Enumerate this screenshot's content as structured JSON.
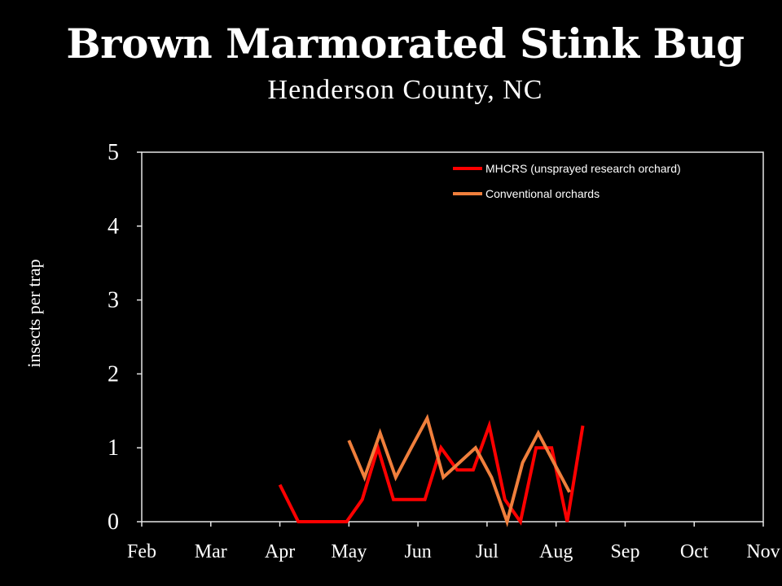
{
  "chart_data": {
    "type": "line",
    "title": "Brown Marmorated Stink Bug",
    "subtitle": "Henderson County, NC",
    "xlabel": "",
    "ylabel": "insects per trap",
    "x_ticks": [
      "Feb",
      "Mar",
      "Apr",
      "May",
      "Jun",
      "Jul",
      "Aug",
      "Sep",
      "Oct",
      "Nov"
    ],
    "xlim": [
      "Feb",
      "Nov"
    ],
    "ylim": [
      0,
      5
    ],
    "y_ticks": [
      0,
      1,
      2,
      3,
      4,
      5
    ],
    "grid": false,
    "legend_position": "top-right",
    "series": [
      {
        "name": "MHCRS (unsprayed research orchard)",
        "color": "#ff0000",
        "x": [
          "Apr 1",
          "Apr 9",
          "Apr 16",
          "Apr 23",
          "Apr 30",
          "May 7",
          "May 14",
          "May 21",
          "May 28",
          "Jun 4",
          "Jun 11",
          "Jun 18",
          "Jun 25",
          "Jul 2",
          "Jul 9",
          "Jul 16",
          "Jul 23",
          "Jul 30",
          "Aug 6",
          "Aug 13"
        ],
        "values": [
          0.5,
          0,
          0,
          0,
          0,
          0.3,
          1.0,
          0.3,
          0.3,
          0.3,
          1.0,
          0.7,
          0.7,
          1.3,
          0.3,
          0,
          1.0,
          1.0,
          0,
          1.3
        ]
      },
      {
        "name": "Conventional orchards",
        "color": "#f07f3c",
        "x": [
          "May 1",
          "May 8",
          "May 15",
          "May 22",
          "May 29",
          "Jun 5",
          "Jun 12",
          "Jun 19",
          "Jun 26",
          "Jul 3",
          "Jul 10",
          "Jul 17",
          "Jul 24",
          "Jul 31",
          "Aug 7"
        ],
        "values": [
          1.1,
          0.6,
          1.2,
          0.6,
          1.0,
          1.4,
          0.6,
          0.8,
          1.0,
          0.6,
          0,
          0.8,
          1.2,
          0.8,
          0.4
        ]
      }
    ]
  }
}
